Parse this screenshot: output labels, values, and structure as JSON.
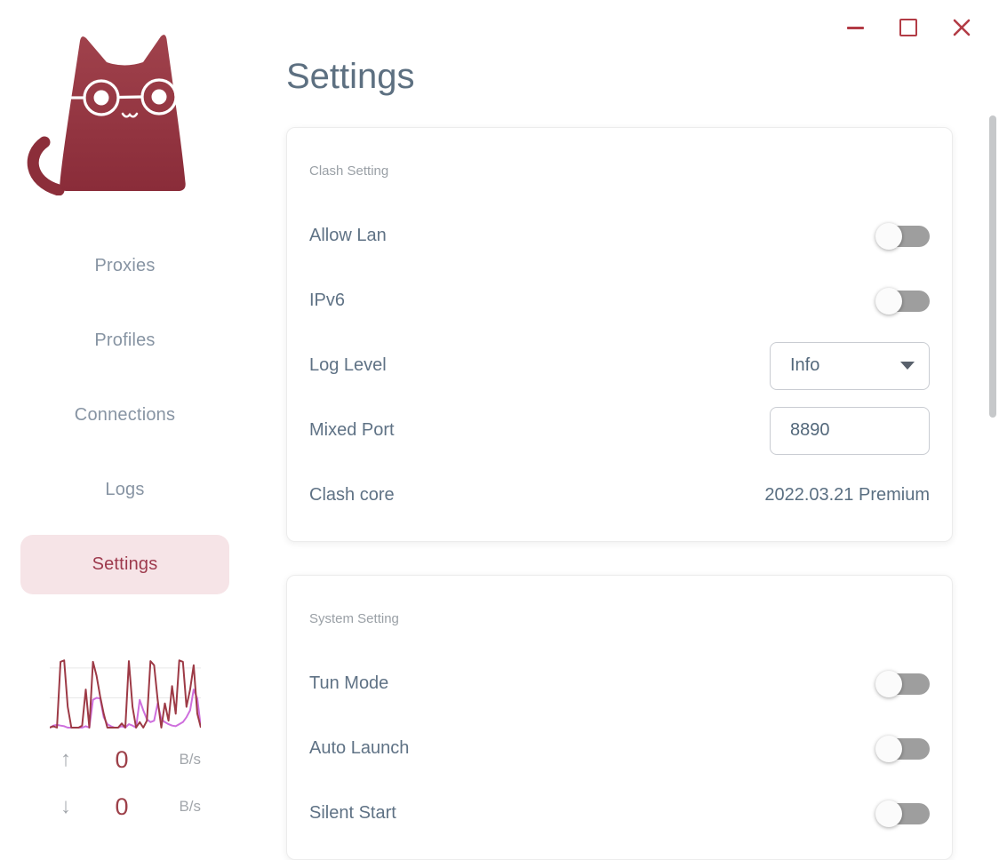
{
  "colors": {
    "accent_red": "#9d3a46",
    "logo_gradient_top": "#a0424c",
    "logo_gradient_bottom": "#8a2c39",
    "nav_text": "#8794a3",
    "active_item_bg": "#f6e4e7",
    "active_item_text": "#9d3a4d",
    "label_text": "#5f7285",
    "muted_text": "#9aa0a6",
    "switch_track_off": "#9e9e9e",
    "control_border": "#c9ccd2",
    "window_controls": "#b23b45",
    "scrollbar": "#c6c8ca"
  },
  "icons": {
    "minimize": "css-dash",
    "maximize": "css-square-outline",
    "close": "svg-x",
    "select_caret": "css-triangle-down",
    "upload": "up-arrow",
    "download": "down-arrow"
  },
  "sidebar": {
    "logo": "clash-cat",
    "items": [
      "Proxies",
      "Profiles",
      "Connections",
      "Logs",
      "Settings"
    ],
    "active_item": "Settings",
    "traffic": {
      "up": {
        "arrow": "↑",
        "value": "0",
        "unit": "B/s"
      },
      "down": {
        "arrow": "↓",
        "value": "0",
        "unit": "B/s"
      }
    }
  },
  "main": {
    "title": "Settings",
    "sections": [
      {
        "heading": "Clash Setting",
        "rows": [
          {
            "label": "Allow Lan",
            "control": "switch",
            "state": "off"
          },
          {
            "label": "IPv6",
            "control": "switch",
            "state": "off"
          },
          {
            "label": "Log Level",
            "control": "select",
            "value": "Info"
          },
          {
            "label": "Mixed Port",
            "control": "input",
            "value": "8890"
          },
          {
            "label": "Clash core",
            "control": "text",
            "value": "2022.03.21 Premium"
          }
        ]
      },
      {
        "heading": "System Setting",
        "rows": [
          {
            "label": "Tun Mode",
            "control": "switch",
            "state": "off"
          },
          {
            "label": "Auto Launch",
            "control": "switch",
            "state": "off"
          },
          {
            "label": "Silent Start",
            "control": "switch",
            "state": "off"
          }
        ]
      }
    ]
  },
  "chart_data": {
    "type": "line",
    "xlabel": "",
    "ylabel": "",
    "ylim": [
      0,
      100
    ],
    "grid": true,
    "grid_lines_pct": [
      43,
      86
    ],
    "legend": "none",
    "series": [
      {
        "name": "up",
        "color": "#9d3a46",
        "values": [
          0,
          2,
          0,
          95,
          97,
          30,
          0,
          0,
          0,
          3,
          55,
          0,
          95,
          75,
          45,
          20,
          0,
          0,
          0,
          0,
          6,
          0,
          96,
          30,
          0,
          8,
          0,
          10,
          96,
          90,
          40,
          0,
          35,
          10,
          60,
          20,
          97,
          95,
          30,
          55,
          90,
          20,
          0
        ]
      },
      {
        "name": "down",
        "color": "#ce6fdd",
        "values": [
          0,
          3,
          4,
          3,
          2,
          0,
          0,
          0,
          0,
          0,
          2,
          0,
          40,
          43,
          42,
          15,
          5,
          2,
          0,
          0,
          2,
          0,
          5,
          3,
          0,
          40,
          25,
          12,
          8,
          10,
          35,
          12,
          8,
          5,
          3,
          2,
          5,
          8,
          15,
          25,
          55,
          42,
          0
        ]
      }
    ]
  }
}
